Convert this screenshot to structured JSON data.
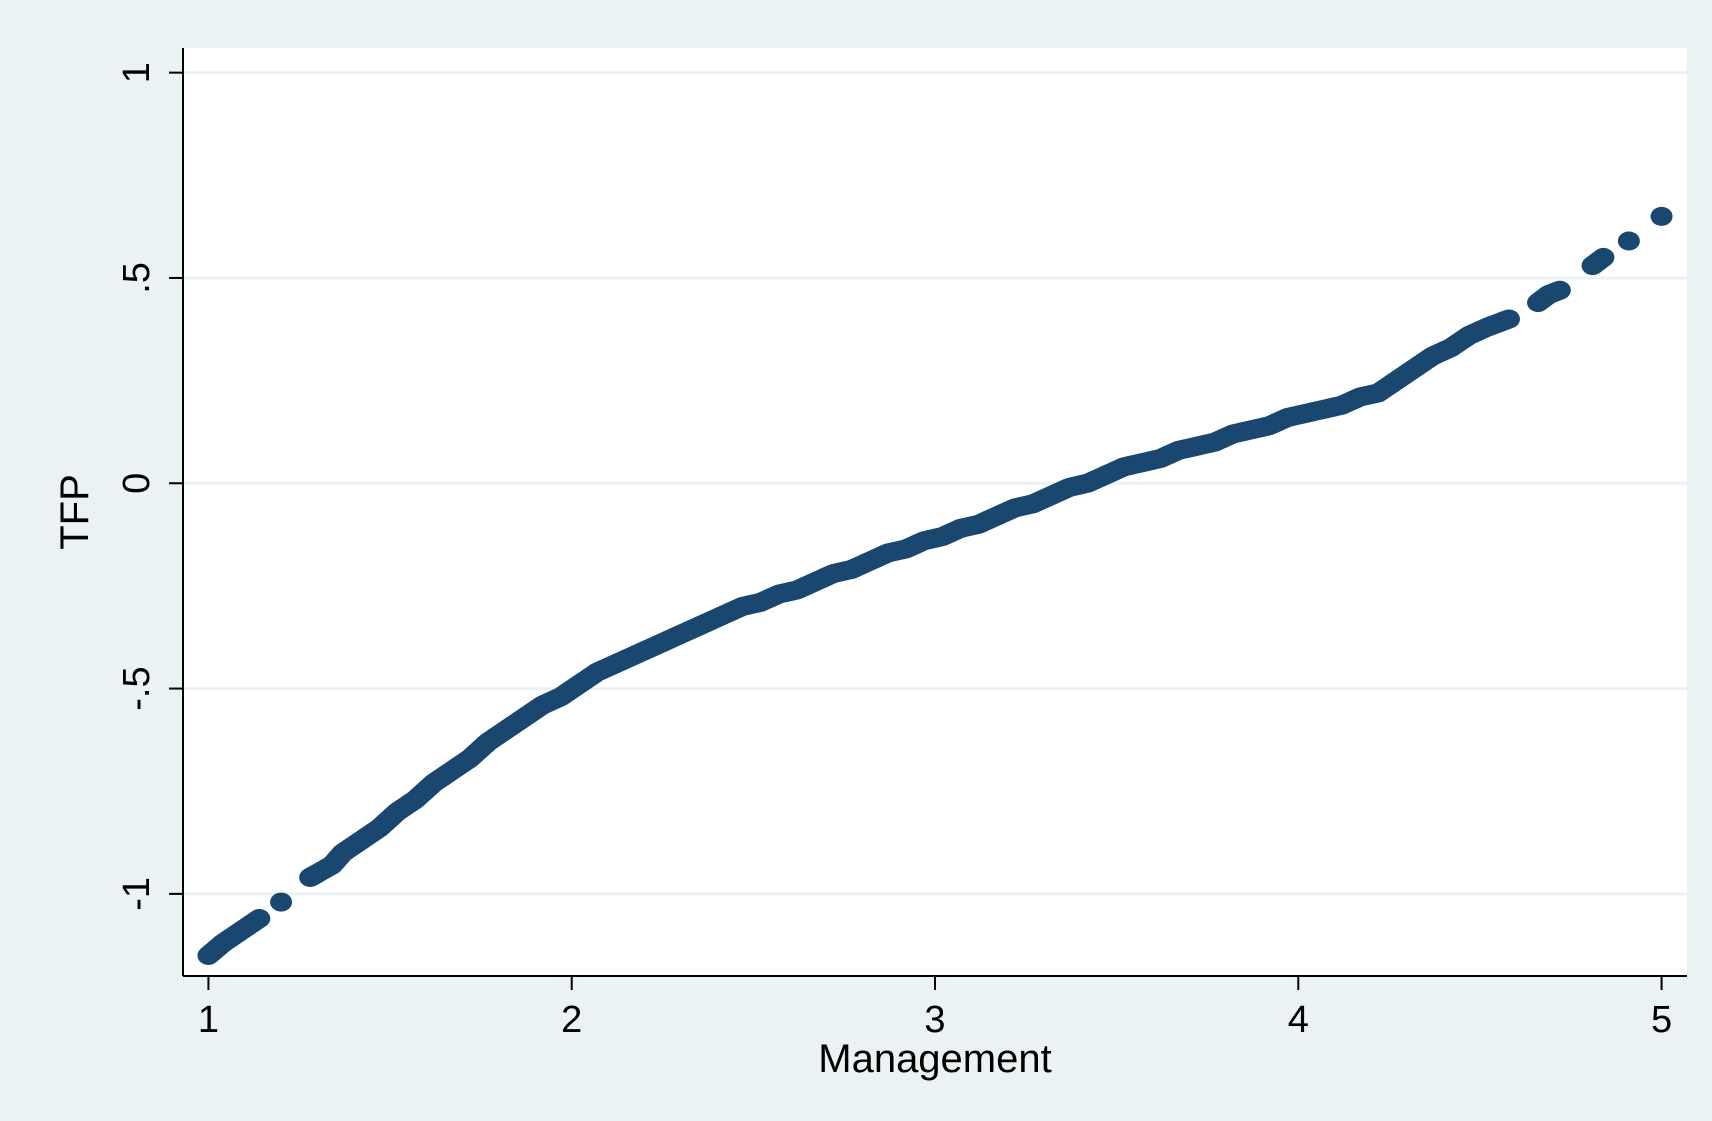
{
  "chart_data": {
    "type": "scatter",
    "title": "",
    "xlabel": "Management",
    "ylabel": "TFP",
    "xlim": [
      0.93,
      5.07
    ],
    "ylim": [
      -1.2,
      1.06
    ],
    "x_ticks": [
      1,
      2,
      3,
      4,
      5
    ],
    "x_tick_labels": [
      "1",
      "2",
      "3",
      "4",
      "5"
    ],
    "y_ticks": [
      -1,
      -0.5,
      0,
      0.5,
      1
    ],
    "y_tick_labels": [
      "-1",
      "-.5",
      "0",
      ".5",
      "1"
    ],
    "grid": "horizontal",
    "series": [
      {
        "color": "#1a476f",
        "points": [
          [
            1.0,
            -1.15
          ],
          [
            1.04,
            -1.12
          ],
          [
            1.09,
            -1.09
          ],
          [
            1.14,
            -1.06
          ],
          [
            1.2,
            -1.02
          ],
          [
            1.28,
            -0.96
          ],
          [
            1.3,
            -0.95
          ],
          [
            1.34,
            -0.93
          ],
          [
            1.37,
            -0.9
          ],
          [
            1.42,
            -0.87
          ],
          [
            1.47,
            -0.84
          ],
          [
            1.52,
            -0.8
          ],
          [
            1.57,
            -0.77
          ],
          [
            1.62,
            -0.73
          ],
          [
            1.67,
            -0.7
          ],
          [
            1.72,
            -0.67
          ],
          [
            1.77,
            -0.63
          ],
          [
            1.82,
            -0.6
          ],
          [
            1.87,
            -0.57
          ],
          [
            1.92,
            -0.54
          ],
          [
            1.97,
            -0.52
          ],
          [
            2.02,
            -0.49
          ],
          [
            2.07,
            -0.46
          ],
          [
            2.12,
            -0.44
          ],
          [
            2.17,
            -0.42
          ],
          [
            2.22,
            -0.4
          ],
          [
            2.27,
            -0.38
          ],
          [
            2.32,
            -0.36
          ],
          [
            2.37,
            -0.34
          ],
          [
            2.42,
            -0.32
          ],
          [
            2.47,
            -0.3
          ],
          [
            2.52,
            -0.29
          ],
          [
            2.57,
            -0.27
          ],
          [
            2.62,
            -0.26
          ],
          [
            2.67,
            -0.24
          ],
          [
            2.72,
            -0.22
          ],
          [
            2.77,
            -0.21
          ],
          [
            2.82,
            -0.19
          ],
          [
            2.87,
            -0.17
          ],
          [
            2.92,
            -0.16
          ],
          [
            2.97,
            -0.14
          ],
          [
            3.02,
            -0.13
          ],
          [
            3.07,
            -0.11
          ],
          [
            3.12,
            -0.1
          ],
          [
            3.17,
            -0.08
          ],
          [
            3.22,
            -0.06
          ],
          [
            3.27,
            -0.05
          ],
          [
            3.32,
            -0.03
          ],
          [
            3.37,
            -0.01
          ],
          [
            3.42,
            0.0
          ],
          [
            3.47,
            0.02
          ],
          [
            3.52,
            0.04
          ],
          [
            3.57,
            0.05
          ],
          [
            3.62,
            0.06
          ],
          [
            3.67,
            0.08
          ],
          [
            3.72,
            0.09
          ],
          [
            3.77,
            0.1
          ],
          [
            3.82,
            0.12
          ],
          [
            3.87,
            0.13
          ],
          [
            3.92,
            0.14
          ],
          [
            3.97,
            0.16
          ],
          [
            4.02,
            0.17
          ],
          [
            4.07,
            0.18
          ],
          [
            4.12,
            0.19
          ],
          [
            4.17,
            0.21
          ],
          [
            4.22,
            0.22
          ],
          [
            4.27,
            0.25
          ],
          [
            4.32,
            0.28
          ],
          [
            4.37,
            0.31
          ],
          [
            4.42,
            0.33
          ],
          [
            4.47,
            0.36
          ],
          [
            4.52,
            0.38
          ],
          [
            4.55,
            0.39
          ],
          [
            4.58,
            0.4
          ],
          [
            4.66,
            0.44
          ],
          [
            4.69,
            0.46
          ],
          [
            4.72,
            0.47
          ],
          [
            4.81,
            0.53
          ],
          [
            4.84,
            0.55
          ],
          [
            4.91,
            0.59
          ],
          [
            5.0,
            0.65
          ]
        ]
      }
    ]
  },
  "colors": {
    "background": "#eaf2f3",
    "plot_background": "#ffffff",
    "gridline": "#eaf2f3",
    "marker": "#1a476f",
    "axis": "#000000"
  }
}
